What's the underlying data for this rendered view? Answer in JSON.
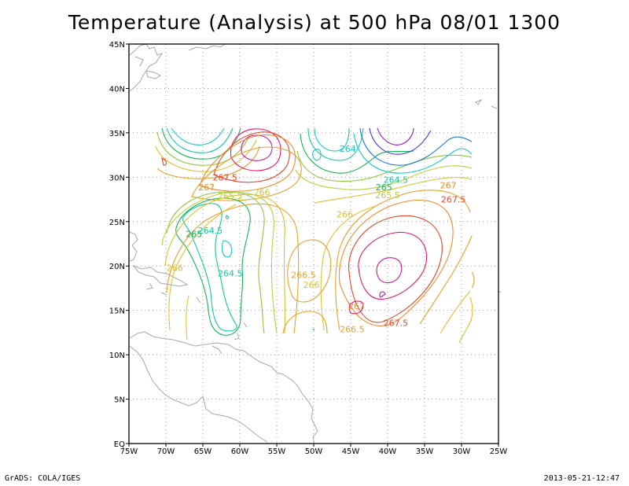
{
  "chart_data": {
    "type": "contour",
    "title": "Temperature (Analysis) at 500 hPa 08/01 1300",
    "x_ticks": [
      "75W",
      "70W",
      "65W",
      "60W",
      "55W",
      "50W",
      "45W",
      "40W",
      "35W",
      "30W",
      "25W"
    ],
    "y_ticks": [
      "EQ",
      "5N",
      "10N",
      "15N",
      "20N",
      "25N",
      "30N",
      "35N",
      "40N",
      "45N"
    ],
    "xlim": [
      -75,
      -25
    ],
    "ylim": [
      0,
      45
    ],
    "grid": true,
    "contour_labels": [
      {
        "text": "267.5",
        "lon": -62.0,
        "lat": 30.0,
        "color": "#e8462a"
      },
      {
        "text": "267",
        "lon": -64.5,
        "lat": 28.9,
        "color": "#f08c2a"
      },
      {
        "text": "265.5",
        "lon": -61.3,
        "lat": 27.9,
        "color": "#b8d23c"
      },
      {
        "text": "266",
        "lon": -57.0,
        "lat": 28.3,
        "color": "#d8c030"
      },
      {
        "text": "264",
        "lon": -45.4,
        "lat": 33.2,
        "color": "#14c8c8"
      },
      {
        "text": "264.5",
        "lon": -38.9,
        "lat": 29.7,
        "color": "#14c8a0"
      },
      {
        "text": "265",
        "lon": -40.5,
        "lat": 28.9,
        "color": "#14b450"
      },
      {
        "text": "265.5",
        "lon": -40.0,
        "lat": 28.0,
        "color": "#b8d23c"
      },
      {
        "text": "266",
        "lon": -45.8,
        "lat": 25.8,
        "color": "#d8c030"
      },
      {
        "text": "267",
        "lon": -31.8,
        "lat": 29.1,
        "color": "#f08c2a"
      },
      {
        "text": "267.5",
        "lon": -31.1,
        "lat": 27.5,
        "color": "#e8462a"
      },
      {
        "text": "264.5",
        "lon": -64.0,
        "lat": 24.0,
        "color": "#14c8a0"
      },
      {
        "text": "265",
        "lon": -66.2,
        "lat": 23.6,
        "color": "#14b450"
      },
      {
        "text": "264.5",
        "lon": -61.3,
        "lat": 19.2,
        "color": "#14c8a0"
      },
      {
        "text": "266",
        "lon": -68.8,
        "lat": 19.8,
        "color": "#d8c030"
      },
      {
        "text": "266.5",
        "lon": -51.4,
        "lat": 19.0,
        "color": "#e8a028"
      },
      {
        "text": "266",
        "lon": -50.3,
        "lat": 17.9,
        "color": "#d8c030"
      },
      {
        "text": "267",
        "lon": -44.2,
        "lat": 15.5,
        "color": "#f08c2a"
      },
      {
        "text": "267.5",
        "lon": -38.9,
        "lat": 13.6,
        "color": "#e8462a"
      },
      {
        "text": "266.5",
        "lon": -44.8,
        "lat": 12.9,
        "color": "#e8a028"
      }
    ]
  },
  "footer": {
    "left": "GrADS: COLA/IGES",
    "right": "2013-05-21-12:47"
  }
}
